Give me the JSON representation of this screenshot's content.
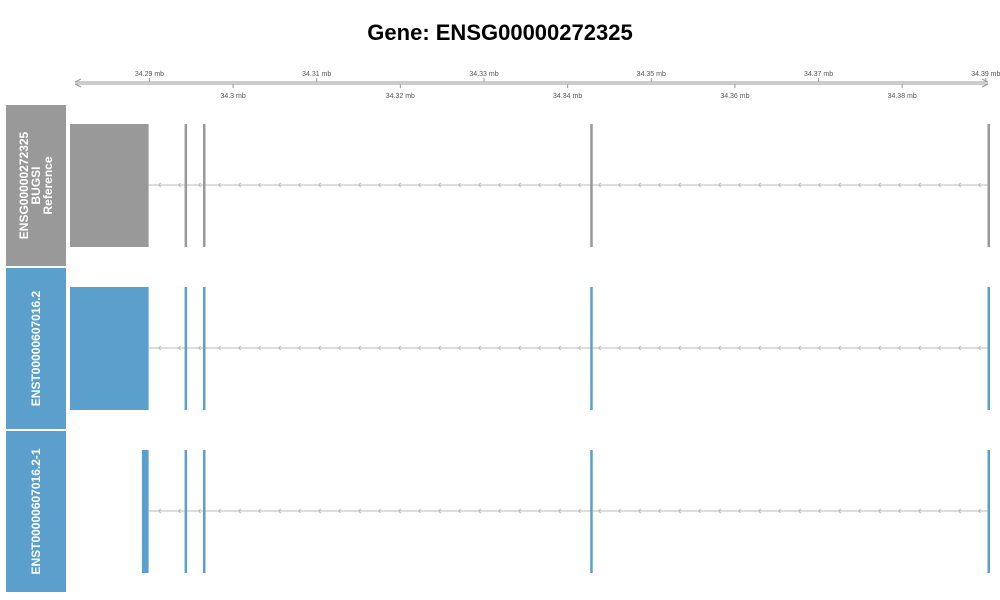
{
  "title": "Gene: ENSG00000272325",
  "axis": {
    "unit": "mb",
    "range": [
      34.2805,
      34.3905
    ],
    "ticks_top": [
      {
        "value": 34.29,
        "label": "34.29 mb"
      },
      {
        "value": 34.31,
        "label": "34.31 mb"
      },
      {
        "value": 34.33,
        "label": "34.33 mb"
      },
      {
        "value": 34.35,
        "label": "34.35 mb"
      },
      {
        "value": 34.37,
        "label": "34.37 mb"
      },
      {
        "value": 34.39,
        "label": "34.39 mb"
      }
    ],
    "ticks_bottom": [
      {
        "value": 34.3,
        "label": "34.3 mb"
      },
      {
        "value": 34.32,
        "label": "34.32 mb"
      },
      {
        "value": 34.34,
        "label": "34.34 mb"
      },
      {
        "value": 34.36,
        "label": "34.36 mb"
      },
      {
        "value": 34.38,
        "label": "34.38 mb"
      }
    ]
  },
  "colors": {
    "reference": "#999999",
    "transcript": "#5b9fcc",
    "intron_line": "#bbbbbb",
    "axis": "#999999"
  },
  "tracks": [
    {
      "id": "reference",
      "label_lines": [
        "ENSG00000272325",
        "BUGSI",
        "Reference"
      ],
      "color": "#999999",
      "exons": [
        [
          34.2805,
          34.2899
        ],
        [
          34.2942,
          34.2945
        ],
        [
          34.2964,
          34.2967
        ],
        [
          34.3427,
          34.343
        ],
        [
          34.3902,
          34.3905
        ]
      ]
    },
    {
      "id": "ENST00000607016.2",
      "label_lines": [
        "ENST00000607016.2"
      ],
      "color": "#5b9fcc",
      "exons": [
        [
          34.2805,
          34.2899
        ],
        [
          34.2942,
          34.2945
        ],
        [
          34.2964,
          34.2967
        ],
        [
          34.3427,
          34.343
        ],
        [
          34.3902,
          34.3905
        ]
      ]
    },
    {
      "id": "ENST00000607016.2-1",
      "label_lines": [
        "ENST00000607016.2-1"
      ],
      "color": "#5b9fcc",
      "exons": [
        [
          34.2891,
          34.2899
        ],
        [
          34.2942,
          34.2945
        ],
        [
          34.2964,
          34.2967
        ],
        [
          34.3427,
          34.343
        ],
        [
          34.3902,
          34.3905
        ]
      ]
    }
  ]
}
